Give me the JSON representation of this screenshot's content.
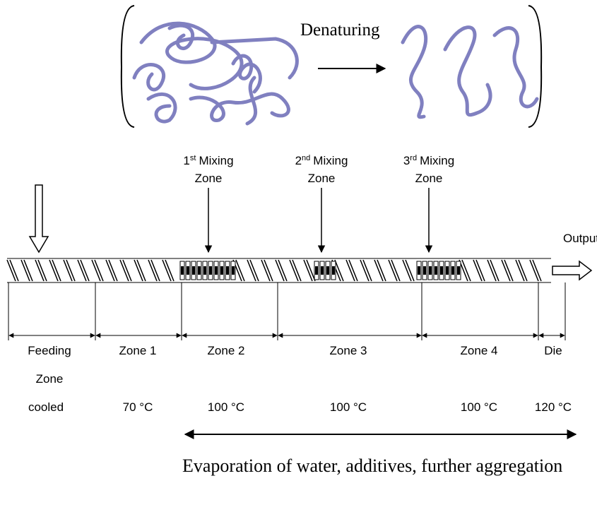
{
  "header": {
    "title": "Denaturing"
  },
  "mixing_zones": [
    {
      "number": "1",
      "suffix": "st",
      "label": "Mixing",
      "line2": "Zone"
    },
    {
      "number": "2",
      "suffix": "nd",
      "label": "Mixing",
      "line2": "Zone"
    },
    {
      "number": "3",
      "suffix": "rd",
      "label": "Mixing",
      "line2": "Zone"
    }
  ],
  "output": "Output",
  "zones": [
    {
      "name": "Feeding",
      "name2": "Zone",
      "temp": "cooled"
    },
    {
      "name": "Zone 1",
      "temp": "70 °C"
    },
    {
      "name": "Zone 2",
      "temp": "100 °C"
    },
    {
      "name": "Zone 3",
      "temp": "100 °C"
    },
    {
      "name": "Zone 4",
      "temp": "100 °C"
    },
    {
      "name": "Die",
      "temp": "120 °C"
    }
  ],
  "note": "Evaporation of water, additives, further aggregation"
}
